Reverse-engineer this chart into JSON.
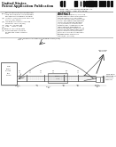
{
  "bg_color": "#ffffff",
  "text_dark": "#222222",
  "text_mid": "#444444",
  "text_light": "#666666",
  "line_color": "#555555",
  "diagram_line": "#333333"
}
